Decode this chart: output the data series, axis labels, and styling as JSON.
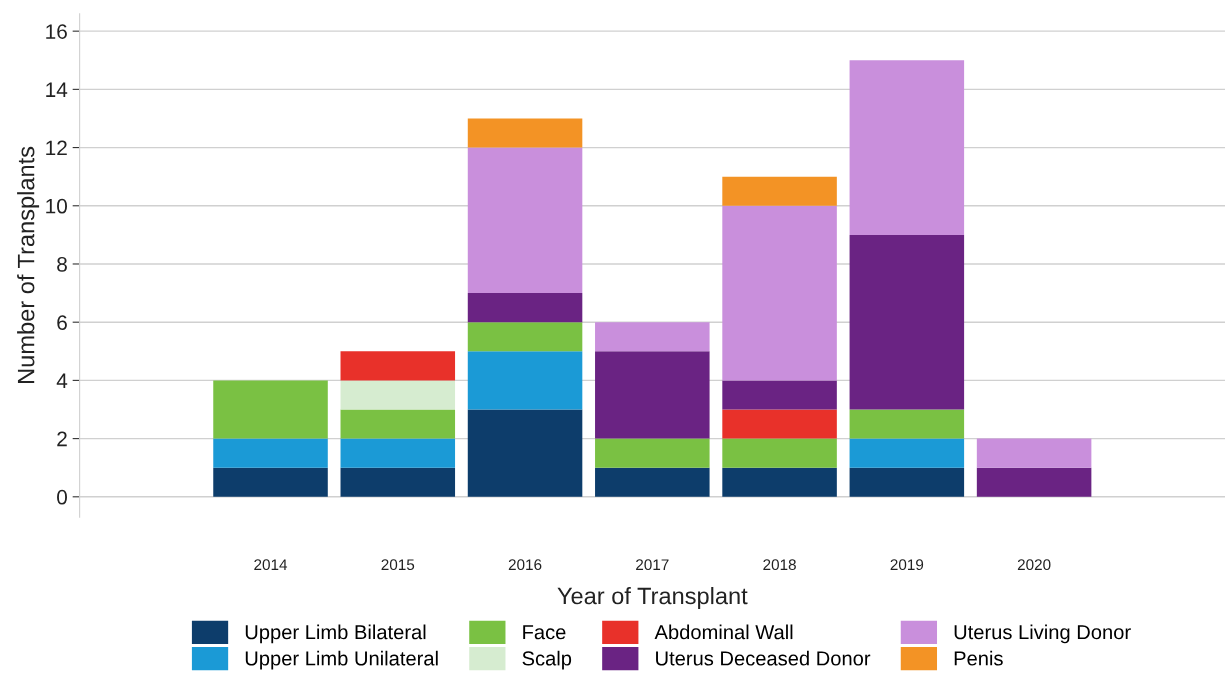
{
  "chart_data": {
    "type": "bar",
    "stacked": true,
    "xlabel": "Year of Transplant",
    "ylabel": "Number of Transplants",
    "categories": [
      null,
      "2014",
      "2015",
      "2016",
      "2017",
      "2018",
      "2019",
      "2020",
      null
    ],
    "series": [
      {
        "name": "Upper Limb Bilateral",
        "color": "#0d3d6b",
        "values": [
          null,
          1,
          1,
          3,
          1,
          1,
          1,
          0,
          null
        ]
      },
      {
        "name": "Upper Limb Unilateral",
        "color": "#1b9ad6",
        "values": [
          null,
          1,
          1,
          2,
          0,
          0,
          1,
          0,
          null
        ]
      },
      {
        "name": "Face",
        "color": "#7ac143",
        "values": [
          null,
          2,
          1,
          1,
          1,
          1,
          1,
          0,
          null
        ]
      },
      {
        "name": "Scalp",
        "color": "#d6ecd0",
        "values": [
          null,
          0,
          1,
          0,
          0,
          0,
          0,
          0,
          null
        ]
      },
      {
        "name": "Abdominal Wall",
        "color": "#e8312a",
        "values": [
          null,
          0,
          1,
          0,
          0,
          1,
          0,
          0,
          null
        ]
      },
      {
        "name": "Uterus Deceased Donor",
        "color": "#6a2383",
        "values": [
          null,
          0,
          0,
          1,
          3,
          1,
          6,
          1,
          null
        ]
      },
      {
        "name": "Uterus Living Donor",
        "color": "#c98fdc",
        "values": [
          null,
          0,
          0,
          5,
          1,
          6,
          6,
          1,
          null
        ]
      },
      {
        "name": "Penis",
        "color": "#f39325",
        "values": [
          null,
          0,
          0,
          1,
          0,
          1,
          0,
          0,
          null
        ]
      }
    ],
    "ylim": [
      -0.7,
      16.6
    ],
    "yticks": [
      0,
      2,
      4,
      6,
      8,
      10,
      12,
      14,
      16
    ],
    "grid": "y",
    "legend": "bottom"
  }
}
